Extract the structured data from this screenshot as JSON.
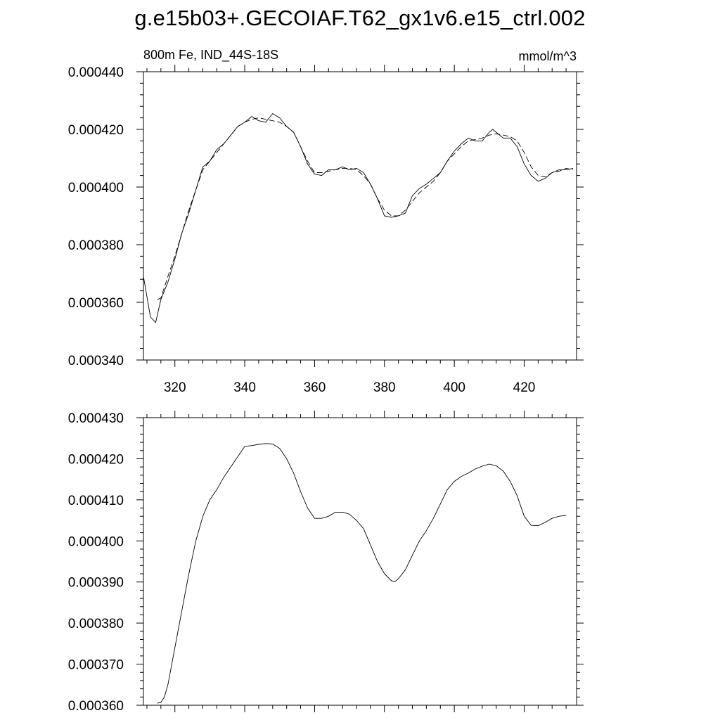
{
  "title": "g.e15b03+.GECOIAF.T62_gx1v6.e15_ctrl.002",
  "chart_data": [
    {
      "type": "line",
      "left_label": "800m Fe, IND_44S-18S",
      "right_label": "mmol/m^3",
      "xlim": [
        311,
        435
      ],
      "ylim": [
        0.00034,
        0.00044
      ],
      "x_ticks": [
        320,
        340,
        360,
        380,
        400,
        420
      ],
      "x_tick_labels": [
        "320",
        "340",
        "360",
        "380",
        "400",
        "420"
      ],
      "y_ticks": [
        0.00034,
        0.00036,
        0.00038,
        0.0004,
        0.00042,
        0.00044
      ],
      "y_tick_labels": [
        "0.000340",
        "0.000360",
        "0.000380",
        "0.000400",
        "0.000420",
        "0.000440"
      ],
      "grid": false,
      "series": [
        {
          "style": "solid",
          "x": [
            311,
            313,
            314.5,
            316,
            318,
            320,
            322,
            324,
            326,
            328,
            330,
            332,
            334,
            336,
            338,
            340,
            342,
            344,
            346,
            348,
            350,
            352,
            354,
            356,
            358,
            360,
            362,
            364,
            366,
            368,
            370,
            372,
            374,
            376,
            378,
            380,
            382,
            384,
            386,
            388,
            390,
            392,
            394,
            396,
            398,
            400,
            402,
            404,
            406,
            408,
            410,
            411,
            412,
            414,
            416,
            418,
            420,
            422,
            424,
            426,
            428,
            430,
            432,
            434
          ],
          "y": [
            0.000369,
            0.000355,
            0.000353,
            0.000361,
            0.000367,
            0.000375,
            0.000384,
            0.000391,
            0.000399,
            0.000407,
            0.000409,
            0.000413,
            0.000415,
            0.000418,
            0.000421,
            0.0004225,
            0.0004245,
            0.000423,
            0.0004225,
            0.0004255,
            0.000424,
            0.000421,
            0.000419,
            0.000414,
            0.000408,
            0.0004045,
            0.000404,
            0.000406,
            0.000406,
            0.000407,
            0.000406,
            0.0004065,
            0.000405,
            0.000401,
            0.000396,
            0.00039,
            0.0003895,
            0.00039,
            0.000391,
            0.000397,
            0.0003995,
            0.000401,
            0.000403,
            0.000405,
            0.000409,
            0.0004125,
            0.000415,
            0.000417,
            0.000416,
            0.000416,
            0.000419,
            0.00042,
            0.000419,
            0.000417,
            0.000417,
            0.000414,
            0.000408,
            0.000404,
            0.000402,
            0.000403,
            0.000405,
            0.000406,
            0.000406,
            0.0004065
          ]
        },
        {
          "style": "dashed",
          "x": [
            315,
            316,
            318,
            320,
            322,
            324,
            326,
            328,
            330,
            332,
            334,
            336,
            338,
            340,
            342,
            344,
            346,
            348,
            350,
            352,
            354,
            356,
            358,
            360,
            362,
            364,
            366,
            368,
            370,
            372,
            374,
            376,
            378,
            380,
            382,
            384,
            386,
            388,
            390,
            392,
            394,
            396,
            398,
            400,
            402,
            404,
            406,
            408,
            410,
            412,
            414,
            416,
            418,
            420,
            422,
            424,
            426,
            428,
            430,
            432,
            434
          ],
          "y": [
            0.000361,
            0.0003615,
            0.000369,
            0.000376,
            0.000384,
            0.000392,
            0.000399,
            0.000406,
            0.000409,
            0.000412,
            0.000415,
            0.000418,
            0.000421,
            0.0004225,
            0.0004235,
            0.000424,
            0.0004235,
            0.000423,
            0.0004225,
            0.000421,
            0.000419,
            0.000414,
            0.000409,
            0.000405,
            0.000405,
            0.0004055,
            0.000406,
            0.0004065,
            0.0004065,
            0.000406,
            0.000404,
            0.000401,
            0.000396,
            0.000392,
            0.00039,
            0.00039,
            0.000392,
            0.000395,
            0.000398,
            0.0004,
            0.000402,
            0.000405,
            0.000409,
            0.0004115,
            0.000414,
            0.000416,
            0.0004165,
            0.000417,
            0.000418,
            0.0004185,
            0.000418,
            0.0004175,
            0.000416,
            0.000412,
            0.000407,
            0.000404,
            0.0004035,
            0.000405,
            0.0004055,
            0.0004065,
            0.000406
          ]
        }
      ]
    },
    {
      "type": "line",
      "xlim": [
        311,
        435
      ],
      "ylim": [
        0.00036,
        0.00043
      ],
      "x_ticks": [
        320,
        340,
        360,
        380,
        400,
        420
      ],
      "y_ticks": [
        0.00036,
        0.00037,
        0.00038,
        0.00039,
        0.0004,
        0.00041,
        0.00042,
        0.00043
      ],
      "y_tick_labels": [
        "0.000360",
        "0.000370",
        "0.000380",
        "0.000390",
        "0.000400",
        "0.000410",
        "0.000420",
        "0.000430"
      ],
      "grid": false,
      "series": [
        {
          "style": "solid",
          "x": [
            315,
            316,
            317,
            318,
            320,
            322,
            324,
            326,
            328,
            330,
            332,
            334,
            336,
            338,
            340,
            342,
            344,
            346,
            348,
            350,
            352,
            354,
            356,
            358,
            360,
            362,
            364,
            366,
            368,
            370,
            372,
            374,
            376,
            378,
            380,
            382,
            383,
            384,
            386,
            388,
            390,
            392,
            394,
            396,
            398,
            400,
            402,
            404,
            406,
            408,
            410,
            412,
            414,
            416,
            418,
            420,
            422,
            424,
            426,
            428,
            430,
            432
          ],
          "y": [
            0.0003605,
            0.0003607,
            0.000362,
            0.000365,
            0.000374,
            0.000383,
            0.000392,
            0.0004,
            0.000406,
            0.00041,
            0.0004125,
            0.0004155,
            0.000418,
            0.0004205,
            0.000423,
            0.0004232,
            0.0004235,
            0.0004237,
            0.0004236,
            0.0004225,
            0.00042,
            0.0004165,
            0.000412,
            0.000408,
            0.0004055,
            0.0004055,
            0.000406,
            0.000407,
            0.000407,
            0.0004065,
            0.000405,
            0.000403,
            0.000399,
            0.000395,
            0.000392,
            0.0003903,
            0.0003901,
            0.0003908,
            0.000393,
            0.0003965,
            0.0004,
            0.0004025,
            0.0004055,
            0.000409,
            0.0004125,
            0.0004145,
            0.0004157,
            0.0004165,
            0.0004175,
            0.0004182,
            0.0004187,
            0.0004183,
            0.000417,
            0.0004145,
            0.000411,
            0.000406,
            0.0004038,
            0.0004037,
            0.0004045,
            0.0004055,
            0.000406,
            0.0004062
          ]
        }
      ]
    }
  ]
}
